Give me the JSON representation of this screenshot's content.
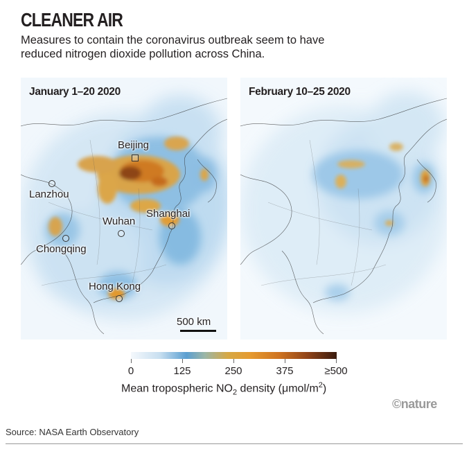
{
  "title": "CLEANER AIR",
  "subtitle": "Measures to contain the coronavirus outbreak seem to have reduced nitrogen dioxide pollution across China.",
  "maps": [
    {
      "title": "January 1–20 2020"
    },
    {
      "title": "February 10–25 2020"
    }
  ],
  "cities": {
    "beijing": "Beijing",
    "lanzhou": "Lanzhou",
    "shanghai": "Shanghai",
    "wuhan": "Wuhan",
    "chongqing": "Chongqing",
    "hong_kong": "Hong Kong"
  },
  "scale": {
    "label": "500 km"
  },
  "legend": {
    "ticks": [
      "0",
      "125",
      "250",
      "375",
      "≥500"
    ],
    "caption_main": "Mean tropospheric NO",
    "caption_sub": "2",
    "caption_tail": " density (μmol/m",
    "caption_sup": "2",
    "caption_end": ")",
    "min": 0,
    "max": 500,
    "unit": "μmol/m²",
    "colors": [
      "#f4f8fc",
      "#5b9fd1",
      "#e59a2f",
      "#cf7421",
      "#3a1b0e"
    ]
  },
  "brand": "©nature",
  "source": "Source: NASA Earth Observatory"
}
